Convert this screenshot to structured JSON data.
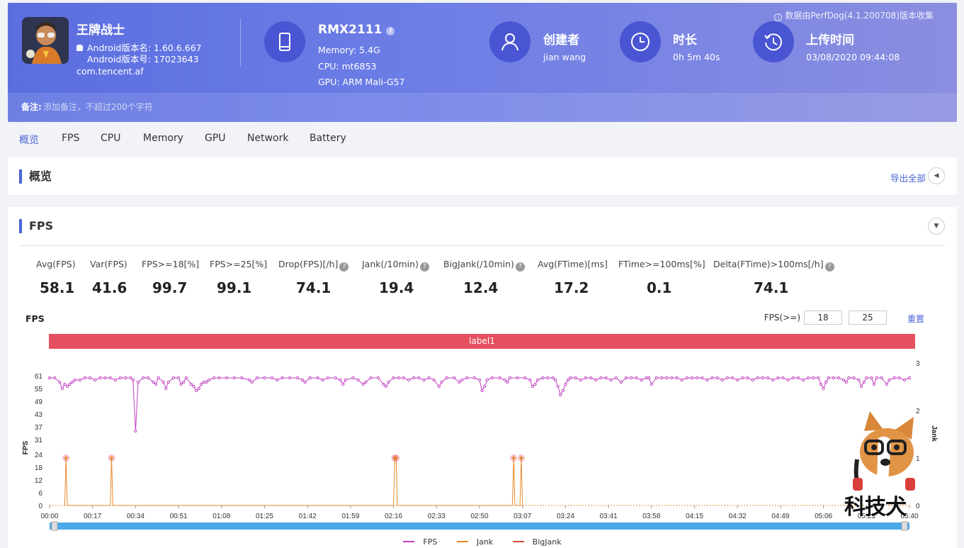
{
  "header": {
    "app": {
      "name": "王牌战士",
      "android_version_name": "Android版本名: 1.60.6.667",
      "android_version_code": "Android版本号: 17023643",
      "package": "com.tencent.af"
    },
    "device": {
      "model": "RMX2111",
      "memory": "Memory: 5.4G",
      "cpu": "CPU: mt6853",
      "gpu": "GPU: ARM Mali-G57"
    },
    "creator": {
      "label": "创建者",
      "value": "jian wang"
    },
    "duration": {
      "label": "时长",
      "value": "0h 5m 40s"
    },
    "upload": {
      "label": "上传时间",
      "value": "03/08/2020 09:44:08"
    },
    "perfdog_note": "数据由PerfDog(4.1.200708)版本收集",
    "note_label": "备注:",
    "note_placeholder": "添加备注，不超过200个字符"
  },
  "tabs": [
    "概览",
    "FPS",
    "CPU",
    "Memory",
    "GPU",
    "Network",
    "Battery"
  ],
  "overview": {
    "title": "概览",
    "export_label": "导出全部"
  },
  "fps_section": {
    "title": "FPS",
    "metrics": [
      {
        "label": "Avg(FPS)",
        "value": "58.1",
        "help": false
      },
      {
        "label": "Var(FPS)",
        "value": "41.6",
        "help": false
      },
      {
        "label": "FPS>=18[%]",
        "value": "99.7",
        "help": false
      },
      {
        "label": "FPS>=25[%]",
        "value": "99.1",
        "help": false
      },
      {
        "label": "Drop(FPS)[/h]",
        "value": "74.1",
        "help": true
      },
      {
        "label": "Jank(/10min)",
        "value": "19.4",
        "help": true
      },
      {
        "label": "BigJank(/10min)",
        "value": "12.4",
        "help": true
      },
      {
        "label": "Avg(FTime)[ms]",
        "value": "17.2",
        "help": false
      },
      {
        "label": "FTime>=100ms[%]",
        "value": "0.1",
        "help": false
      },
      {
        "label": "Delta(FTime)>100ms[/h]",
        "value": "74.1",
        "help": true
      }
    ],
    "chart_label": "FPS",
    "threshold_label": "FPS(>=)",
    "threshold_1": "18",
    "threshold_2": "25",
    "reset_label": "重置",
    "bar_label": "label1"
  },
  "colors": {
    "accent": "#4a64d6",
    "fps": "#c040c0",
    "jank": "#e8892a",
    "bigjank": "#d9463a",
    "label_bar": "#e4505f"
  },
  "chart_data": {
    "type": "line",
    "x_ticks": [
      "00:00",
      "00:17",
      "00:34",
      "00:51",
      "01:08",
      "01:25",
      "01:42",
      "01:59",
      "02:16",
      "02:33",
      "02:50",
      "03:07",
      "03:24",
      "03:41",
      "03:58",
      "04:15",
      "04:32",
      "04:49",
      "05:06",
      "05:23",
      "05:40"
    ],
    "y_left_ticks": [
      0,
      6,
      12,
      18,
      24,
      31,
      37,
      43,
      49,
      55,
      61
    ],
    "y_right_ticks": [
      0,
      1,
      2,
      3
    ],
    "ylabel_left": "FPS",
    "ylabel_right": "Jank",
    "xlim_seconds": [
      0,
      340
    ],
    "series": [
      {
        "name": "FPS",
        "points": [
          [
            0,
            60
          ],
          [
            2,
            60
          ],
          [
            4,
            58
          ],
          [
            5,
            55
          ],
          [
            6,
            57
          ],
          [
            7,
            56
          ],
          [
            8,
            57
          ],
          [
            9,
            58
          ],
          [
            10,
            59
          ],
          [
            12,
            59
          ],
          [
            14,
            60
          ],
          [
            16,
            60
          ],
          [
            18,
            59
          ],
          [
            20,
            60
          ],
          [
            22,
            60
          ],
          [
            24,
            60
          ],
          [
            26,
            59
          ],
          [
            28,
            60
          ],
          [
            30,
            60
          ],
          [
            32,
            60
          ],
          [
            33,
            59
          ],
          [
            34,
            35
          ],
          [
            35,
            58
          ],
          [
            37,
            60
          ],
          [
            39,
            60
          ],
          [
            41,
            58
          ],
          [
            42,
            57
          ],
          [
            43,
            60
          ],
          [
            45,
            58
          ],
          [
            46,
            55
          ],
          [
            47,
            58
          ],
          [
            49,
            60
          ],
          [
            51,
            60
          ],
          [
            52,
            57
          ],
          [
            53,
            58
          ],
          [
            54,
            60
          ],
          [
            56,
            57
          ],
          [
            57,
            56
          ],
          [
            58,
            54
          ],
          [
            59,
            55
          ],
          [
            60,
            57
          ],
          [
            61,
            58
          ],
          [
            62,
            58
          ],
          [
            63,
            59
          ],
          [
            65,
            60
          ],
          [
            67,
            60
          ],
          [
            70,
            60
          ],
          [
            73,
            60
          ],
          [
            76,
            60
          ],
          [
            79,
            59
          ],
          [
            80,
            58
          ],
          [
            82,
            60
          ],
          [
            85,
            60
          ],
          [
            88,
            60
          ],
          [
            90,
            59
          ],
          [
            92,
            60
          ],
          [
            95,
            60
          ],
          [
            98,
            60
          ],
          [
            100,
            59
          ],
          [
            101,
            58
          ],
          [
            103,
            60
          ],
          [
            106,
            60
          ],
          [
            108,
            59
          ],
          [
            110,
            60
          ],
          [
            113,
            60
          ],
          [
            115,
            59
          ],
          [
            116,
            57
          ],
          [
            117,
            59
          ],
          [
            120,
            60
          ],
          [
            122,
            59
          ],
          [
            124,
            57
          ],
          [
            125,
            58
          ],
          [
            127,
            60
          ],
          [
            130,
            60
          ],
          [
            132,
            57
          ],
          [
            133,
            56
          ],
          [
            134,
            58
          ],
          [
            136,
            60
          ],
          [
            138,
            60
          ],
          [
            140,
            60
          ],
          [
            142,
            59
          ],
          [
            144,
            60
          ],
          [
            146,
            60
          ],
          [
            148,
            59
          ],
          [
            150,
            60
          ],
          [
            152,
            59
          ],
          [
            154,
            56
          ],
          [
            155,
            58
          ],
          [
            157,
            60
          ],
          [
            160,
            60
          ],
          [
            162,
            58
          ],
          [
            163,
            59
          ],
          [
            165,
            60
          ],
          [
            168,
            60
          ],
          [
            170,
            59
          ],
          [
            171,
            54
          ],
          [
            172,
            56
          ],
          [
            173,
            59
          ],
          [
            175,
            60
          ],
          [
            178,
            60
          ],
          [
            180,
            59
          ],
          [
            181,
            58
          ],
          [
            182,
            60
          ],
          [
            185,
            60
          ],
          [
            188,
            60
          ],
          [
            190,
            59
          ],
          [
            191,
            56
          ],
          [
            192,
            57
          ],
          [
            193,
            59
          ],
          [
            195,
            60
          ],
          [
            197,
            60
          ],
          [
            199,
            60
          ],
          [
            200,
            59
          ],
          [
            201,
            56
          ],
          [
            202,
            52
          ],
          [
            203,
            54
          ],
          [
            204,
            57
          ],
          [
            205,
            59
          ],
          [
            206,
            60
          ],
          [
            208,
            60
          ],
          [
            210,
            59
          ],
          [
            212,
            60
          ],
          [
            214,
            60
          ],
          [
            216,
            59
          ],
          [
            218,
            60
          ],
          [
            220,
            60
          ],
          [
            222,
            59
          ],
          [
            224,
            60
          ],
          [
            226,
            58
          ],
          [
            228,
            60
          ],
          [
            230,
            60
          ],
          [
            232,
            60
          ],
          [
            234,
            59
          ],
          [
            236,
            60
          ],
          [
            237,
            60
          ],
          [
            238,
            57
          ],
          [
            240,
            60
          ],
          [
            242,
            60
          ],
          [
            244,
            60
          ],
          [
            246,
            60
          ],
          [
            248,
            60
          ],
          [
            250,
            59
          ],
          [
            252,
            60
          ],
          [
            254,
            60
          ],
          [
            256,
            60
          ],
          [
            258,
            60
          ],
          [
            260,
            59
          ],
          [
            262,
            60
          ],
          [
            264,
            60
          ],
          [
            266,
            59
          ],
          [
            268,
            60
          ],
          [
            270,
            60
          ],
          [
            272,
            59
          ],
          [
            274,
            60
          ],
          [
            276,
            60
          ],
          [
            278,
            59
          ],
          [
            280,
            60
          ],
          [
            282,
            60
          ],
          [
            284,
            60
          ],
          [
            286,
            59
          ],
          [
            288,
            60
          ],
          [
            290,
            60
          ],
          [
            292,
            59
          ],
          [
            294,
            60
          ],
          [
            296,
            60
          ],
          [
            298,
            59
          ],
          [
            300,
            60
          ],
          [
            302,
            60
          ],
          [
            304,
            60
          ],
          [
            305,
            57
          ],
          [
            306,
            55
          ],
          [
            307,
            58
          ],
          [
            308,
            60
          ],
          [
            310,
            60
          ],
          [
            312,
            60
          ],
          [
            314,
            59
          ],
          [
            315,
            58
          ],
          [
            316,
            60
          ],
          [
            318,
            60
          ],
          [
            320,
            59
          ],
          [
            321,
            56
          ],
          [
            322,
            58
          ],
          [
            323,
            60
          ],
          [
            325,
            60
          ],
          [
            326,
            57
          ],
          [
            327,
            60
          ],
          [
            329,
            60
          ],
          [
            331,
            57
          ],
          [
            332,
            59
          ],
          [
            334,
            60
          ],
          [
            336,
            60
          ],
          [
            338,
            59
          ],
          [
            340,
            60
          ]
        ]
      },
      {
        "name": "Jank",
        "points": [
          [
            6,
            0
          ],
          [
            6.5,
            1
          ],
          [
            7,
            0
          ],
          [
            24,
            0
          ],
          [
            24.5,
            1
          ],
          [
            25,
            0
          ],
          [
            136,
            0
          ],
          [
            136.5,
            1
          ],
          [
            137,
            1
          ],
          [
            137.5,
            0
          ],
          [
            183,
            0
          ],
          [
            183.5,
            1
          ],
          [
            184,
            0
          ],
          [
            186,
            0
          ],
          [
            186.5,
            1
          ],
          [
            187,
            0
          ]
        ]
      },
      {
        "name": "BigJank",
        "points": []
      }
    ]
  },
  "watermark": "科技犬"
}
